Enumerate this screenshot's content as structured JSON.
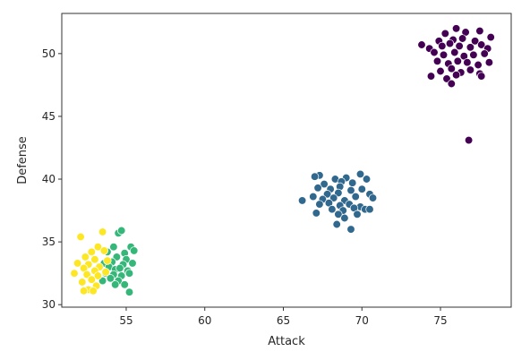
{
  "chart_data": {
    "type": "scatter",
    "title": "",
    "xlabel": "Attack",
    "ylabel": "Defense",
    "xlim": [
      50.9,
      79.5
    ],
    "ylim": [
      29.8,
      53.2
    ],
    "xticks": [
      55,
      60,
      65,
      70,
      75
    ],
    "yticks": [
      30,
      35,
      40,
      45,
      50
    ],
    "grid": false,
    "legend": "none",
    "marker_edge_color": "#ffffff",
    "series": [
      {
        "color": "#440154",
        "points": [
          [
            76.0,
            52.0
          ],
          [
            75.3,
            51.6
          ],
          [
            76.6,
            51.7
          ],
          [
            77.5,
            51.8
          ],
          [
            78.2,
            51.3
          ],
          [
            74.9,
            51.0
          ],
          [
            75.8,
            51.1
          ],
          [
            76.4,
            51.2
          ],
          [
            77.2,
            51.0
          ],
          [
            73.8,
            50.7
          ],
          [
            74.3,
            50.4
          ],
          [
            75.1,
            50.6
          ],
          [
            75.6,
            50.8
          ],
          [
            76.2,
            50.6
          ],
          [
            76.9,
            50.5
          ],
          [
            77.6,
            50.7
          ],
          [
            78.0,
            50.4
          ],
          [
            74.6,
            50.1
          ],
          [
            75.2,
            49.9
          ],
          [
            75.9,
            50.1
          ],
          [
            76.5,
            49.8
          ],
          [
            77.1,
            49.9
          ],
          [
            77.8,
            50.0
          ],
          [
            74.8,
            49.4
          ],
          [
            75.5,
            49.2
          ],
          [
            76.1,
            49.4
          ],
          [
            76.7,
            49.3
          ],
          [
            77.4,
            49.1
          ],
          [
            78.1,
            49.3
          ],
          [
            75.0,
            48.6
          ],
          [
            75.7,
            48.8
          ],
          [
            76.3,
            48.5
          ],
          [
            76.9,
            48.7
          ],
          [
            77.5,
            48.4
          ],
          [
            74.4,
            48.2
          ],
          [
            75.4,
            48.0
          ],
          [
            76.0,
            48.3
          ],
          [
            77.6,
            48.2
          ],
          [
            75.7,
            47.6
          ],
          [
            76.8,
            43.1
          ]
        ]
      },
      {
        "color": "#31688e",
        "points": [
          [
            67.3,
            40.3
          ],
          [
            69.9,
            40.4
          ],
          [
            67.0,
            40.2
          ],
          [
            68.3,
            40.0
          ],
          [
            69.0,
            40.1
          ],
          [
            70.3,
            40.0
          ],
          [
            68.7,
            39.8
          ],
          [
            67.6,
            39.6
          ],
          [
            69.4,
            39.7
          ],
          [
            67.2,
            39.3
          ],
          [
            68.0,
            39.2
          ],
          [
            68.6,
            39.4
          ],
          [
            69.3,
            39.1
          ],
          [
            70.0,
            39.2
          ],
          [
            67.8,
            38.8
          ],
          [
            68.5,
            38.9
          ],
          [
            70.5,
            38.8
          ],
          [
            66.2,
            38.3
          ],
          [
            66.9,
            38.6
          ],
          [
            67.5,
            38.4
          ],
          [
            68.2,
            38.5
          ],
          [
            68.9,
            38.3
          ],
          [
            69.6,
            38.6
          ],
          [
            70.7,
            38.5
          ],
          [
            67.3,
            38.0
          ],
          [
            67.9,
            38.1
          ],
          [
            68.6,
            37.9
          ],
          [
            69.2,
            38.0
          ],
          [
            69.9,
            37.8
          ],
          [
            68.1,
            37.6
          ],
          [
            68.8,
            37.5
          ],
          [
            69.5,
            37.7
          ],
          [
            70.2,
            37.6
          ],
          [
            70.5,
            37.6
          ],
          [
            67.1,
            37.3
          ],
          [
            68.5,
            37.2
          ],
          [
            69.7,
            37.2
          ],
          [
            68.9,
            36.9
          ],
          [
            68.4,
            36.4
          ],
          [
            69.3,
            36.0
          ]
        ]
      },
      {
        "color": "#35b779",
        "points": [
          [
            54.5,
            35.7
          ],
          [
            54.7,
            35.9
          ],
          [
            54.2,
            34.6
          ],
          [
            55.3,
            34.6
          ],
          [
            53.8,
            34.2
          ],
          [
            54.9,
            34.1
          ],
          [
            55.5,
            34.3
          ],
          [
            54.4,
            33.8
          ],
          [
            55.0,
            33.6
          ],
          [
            53.6,
            33.3
          ],
          [
            54.1,
            33.4
          ],
          [
            54.8,
            33.2
          ],
          [
            55.4,
            33.3
          ],
          [
            53.9,
            33.0
          ],
          [
            54.3,
            32.8
          ],
          [
            54.6,
            32.9
          ],
          [
            55.1,
            32.7
          ],
          [
            53.7,
            32.5
          ],
          [
            54.2,
            32.4
          ],
          [
            54.7,
            32.3
          ],
          [
            55.2,
            32.5
          ],
          [
            54.0,
            32.1
          ],
          [
            54.5,
            31.9
          ],
          [
            53.5,
            31.9
          ],
          [
            54.9,
            31.6
          ],
          [
            54.3,
            31.6
          ],
          [
            55.2,
            31.0
          ]
        ]
      },
      {
        "color": "#fde725",
        "points": [
          [
            53.5,
            35.8
          ],
          [
            52.1,
            35.4
          ],
          [
            53.2,
            34.6
          ],
          [
            52.8,
            34.2
          ],
          [
            53.6,
            34.3
          ],
          [
            52.4,
            33.8
          ],
          [
            53.0,
            33.6
          ],
          [
            53.8,
            33.5
          ],
          [
            51.9,
            33.3
          ],
          [
            52.6,
            33.2
          ],
          [
            53.3,
            33.0
          ],
          [
            52.3,
            32.9
          ],
          [
            53.0,
            32.7
          ],
          [
            53.7,
            32.6
          ],
          [
            51.7,
            32.5
          ],
          [
            52.5,
            32.4
          ],
          [
            53.2,
            32.3
          ],
          [
            52.8,
            32.0
          ],
          [
            52.2,
            31.8
          ],
          [
            53.1,
            31.5
          ],
          [
            52.6,
            31.2
          ],
          [
            52.3,
            31.1
          ],
          [
            52.9,
            31.1
          ]
        ]
      }
    ]
  }
}
